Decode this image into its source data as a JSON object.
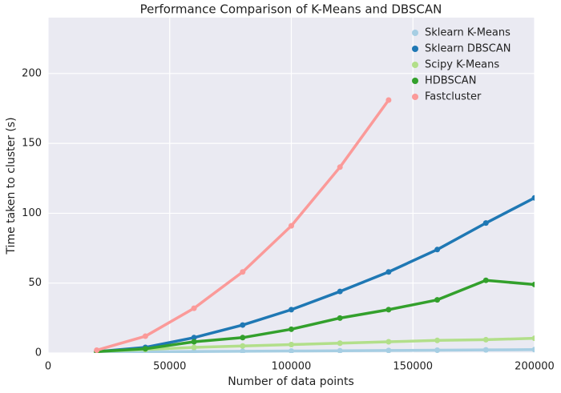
{
  "chart_data": {
    "type": "scatter",
    "title": "Performance Comparison of K-Means and DBSCAN",
    "x_label": "Number of data points",
    "y_label": "Time taken to cluster (s)",
    "x": [
      20000,
      40000,
      60000,
      80000,
      100000,
      120000,
      140000,
      160000,
      180000,
      200000
    ],
    "series": [
      {
        "name": "Sklearn K-Means",
        "color": "#a6cee3",
        "values": [
          0.5,
          0.8,
          1,
          1.2,
          1.4,
          1.6,
          1.8,
          2,
          2.2,
          2.4
        ]
      },
      {
        "name": "Sklearn DBSCAN",
        "color": "#1f78b4",
        "values": [
          1,
          4,
          11,
          20,
          31,
          44,
          58,
          74,
          93,
          111
        ]
      },
      {
        "name": "Scipy K-Means",
        "color": "#b2df8a",
        "values": [
          1,
          2.5,
          4,
          5,
          6,
          7,
          8,
          9,
          9.5,
          10.5
        ]
      },
      {
        "name": "HDBSCAN",
        "color": "#33a02c",
        "values": [
          1,
          3,
          8,
          11,
          17,
          25,
          31,
          38,
          52,
          49
        ]
      },
      {
        "name": "Fastcluster",
        "color": "#fb9a99",
        "values": [
          2,
          12,
          32,
          58,
          91,
          133,
          181,
          null,
          null,
          null
        ]
      }
    ],
    "xlim": [
      0,
      200000
    ],
    "xticks": [
      0,
      50000,
      100000,
      150000,
      200000
    ],
    "ylim": [
      0,
      240
    ],
    "yticks": [
      0,
      50,
      100,
      150,
      200
    ],
    "grid": true,
    "legend": "upper right"
  }
}
